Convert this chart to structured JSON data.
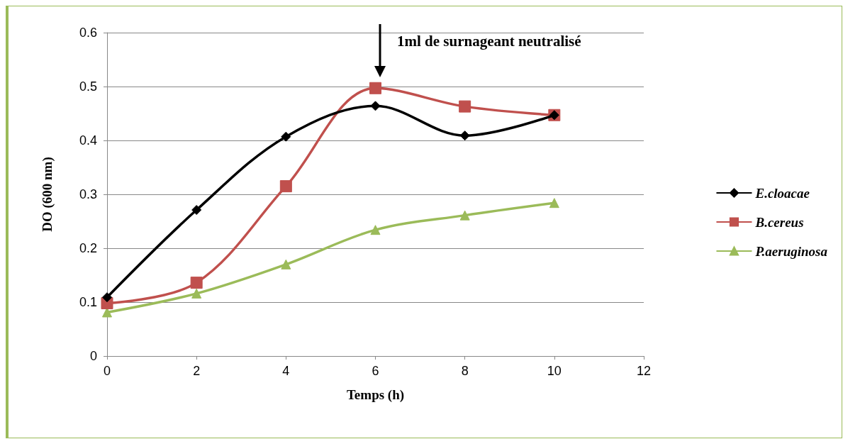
{
  "chart_data": {
    "type": "line",
    "xlabel": "Temps (h)",
    "ylabel": "DO (600 nm)",
    "x": [
      0,
      2,
      4,
      6,
      8,
      10
    ],
    "series": [
      {
        "name": "E.cloacae",
        "color": "#000000",
        "marker": "diamond",
        "values": [
          0.109,
          0.271,
          0.407,
          0.464,
          0.409,
          0.447
        ]
      },
      {
        "name": "B.cereus",
        "color": "#c0504d",
        "marker": "square",
        "values": [
          0.098,
          0.136,
          0.315,
          0.497,
          0.463,
          0.447
        ]
      },
      {
        "name": "P.aeruginosa",
        "color": "#9bbb59",
        "marker": "triangle",
        "values": [
          0.081,
          0.116,
          0.17,
          0.234,
          0.261,
          0.284
        ]
      }
    ],
    "xlim": [
      0,
      12
    ],
    "xticks": [
      0,
      2,
      4,
      6,
      8,
      10,
      12
    ],
    "ylim": [
      0,
      0.6
    ],
    "yticks": [
      0,
      0.1,
      0.2,
      0.3,
      0.4,
      0.5,
      0.6
    ],
    "grid": "y",
    "legend": "right",
    "annotations": [
      "1ml de surnageant neutralisé"
    ]
  }
}
